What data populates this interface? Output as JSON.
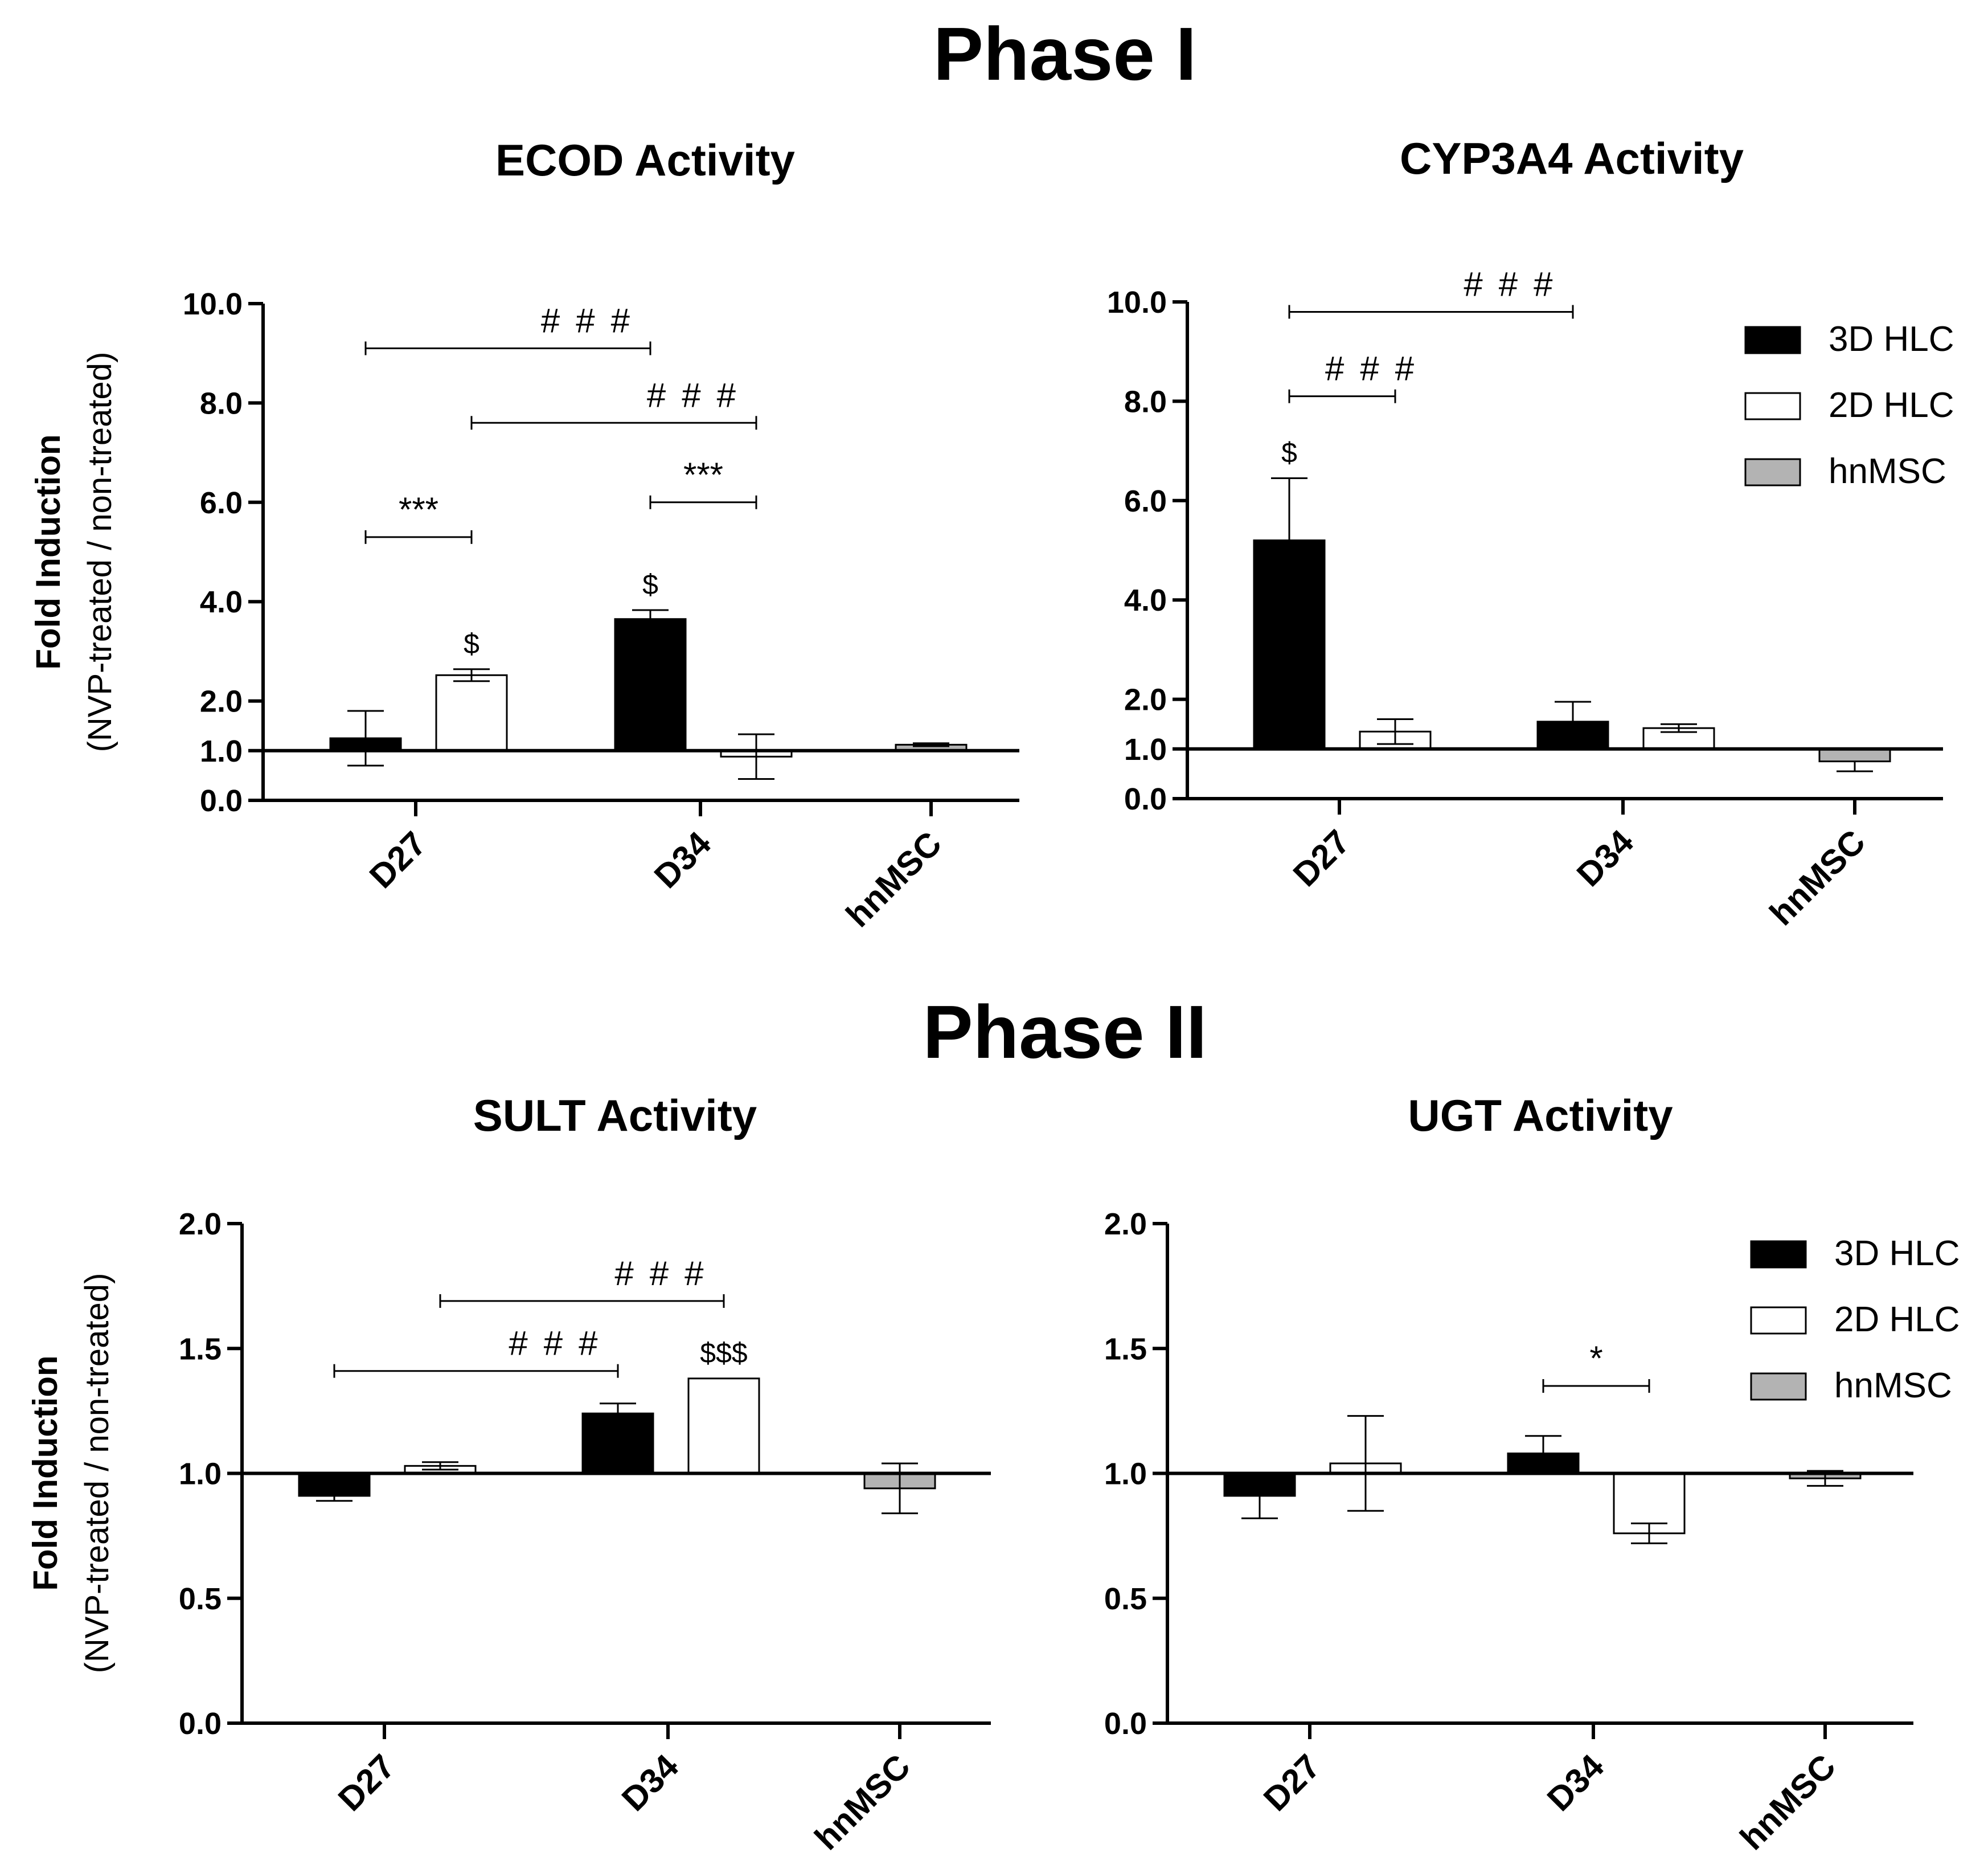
{
  "figure": {
    "phase1_title": "Phase I",
    "phase2_title": "Phase II"
  },
  "legend": [
    {
      "name": "3D HLC",
      "fill": "#000000",
      "stroke": "#000000"
    },
    {
      "name": "2D HLC",
      "fill": "#ffffff",
      "stroke": "#000000"
    },
    {
      "name": "hnMSC",
      "fill": "#b3b3b3",
      "stroke": "#000000"
    }
  ],
  "chart_data": [
    {
      "id": "ecod",
      "type": "bar",
      "title": "ECOD Activity",
      "ylabel": "Fold Induction",
      "ylabel_sub": "(NVP-treated / non-treated)",
      "ylim": [
        0,
        10
      ],
      "baseline": 1.0,
      "yticks": [
        {
          "v": 0,
          "label": "0.0"
        },
        {
          "v": 1,
          "label": "1.0"
        },
        {
          "v": 2,
          "label": "2.0"
        },
        {
          "v": 4,
          "label": "4.0"
        },
        {
          "v": 6,
          "label": "6.0"
        },
        {
          "v": 8,
          "label": "8.0"
        },
        {
          "v": 10,
          "label": "10.0"
        }
      ],
      "categories": [
        "D27",
        "D34",
        "hnMSC"
      ],
      "bars": [
        {
          "cat": 0,
          "series": "3D HLC",
          "value": 1.25,
          "err": 0.55,
          "err_dir": "both"
        },
        {
          "cat": 0,
          "series": "2D HLC",
          "value": 2.52,
          "err": 0.12,
          "err_dir": "both"
        },
        {
          "cat": 1,
          "series": "3D HLC",
          "value": 3.65,
          "err": 0.18,
          "err_dir": "both"
        },
        {
          "cat": 1,
          "series": "2D HLC",
          "value": 0.88,
          "err": 0.45,
          "err_dir": "both"
        },
        {
          "cat": 2,
          "series": "hnMSC",
          "value": 1.12,
          "err": 0.03,
          "err_dir": "both"
        }
      ],
      "bar_annotations": [
        {
          "bar": 1,
          "text": "$"
        },
        {
          "bar": 2,
          "text": "$"
        }
      ],
      "brackets": [
        {
          "from": 0,
          "to": 2,
          "level": 9.1,
          "text": "###"
        },
        {
          "from": 1,
          "to": 3,
          "level": 7.6,
          "text": "###"
        },
        {
          "from": 0,
          "to": 1,
          "level": 5.3,
          "text": "***"
        },
        {
          "from": 2,
          "to": 3,
          "level": 6.0,
          "text": "***"
        }
      ]
    },
    {
      "id": "cyp3a4",
      "type": "bar",
      "title": "CYP3A4 Activity",
      "ylim": [
        0,
        10
      ],
      "baseline": 1.0,
      "yticks": [
        {
          "v": 0,
          "label": "0.0"
        },
        {
          "v": 1,
          "label": "1.0"
        },
        {
          "v": 2,
          "label": "2.0"
        },
        {
          "v": 4,
          "label": "4.0"
        },
        {
          "v": 6,
          "label": "6.0"
        },
        {
          "v": 8,
          "label": "8.0"
        },
        {
          "v": 10,
          "label": "10.0"
        }
      ],
      "categories": [
        "D27",
        "D34",
        "hnMSC"
      ],
      "bars": [
        {
          "cat": 0,
          "series": "3D HLC",
          "value": 5.2,
          "err": 1.25,
          "err_dir": "up"
        },
        {
          "cat": 0,
          "series": "2D HLC",
          "value": 1.35,
          "err": 0.25,
          "err_dir": "both"
        },
        {
          "cat": 1,
          "series": "3D HLC",
          "value": 1.55,
          "err": 0.4,
          "err_dir": "up"
        },
        {
          "cat": 1,
          "series": "2D HLC",
          "value": 1.42,
          "err": 0.08,
          "err_dir": "both"
        },
        {
          "cat": 2,
          "series": "hnMSC",
          "value": 0.75,
          "err": 0.2,
          "err_dir": "down"
        }
      ],
      "bar_annotations": [
        {
          "bar": 0,
          "text": "$"
        }
      ],
      "brackets": [
        {
          "from": 0,
          "to": 2,
          "level": 9.8,
          "text": "###"
        },
        {
          "from": 0,
          "to": 1,
          "level": 8.1,
          "text": "###"
        }
      ]
    },
    {
      "id": "sult",
      "type": "bar",
      "title": "SULT Activity",
      "ylabel": "Fold Induction",
      "ylabel_sub": "(NVP-treated / non-treated)",
      "ylim": [
        0,
        2
      ],
      "baseline": 1.0,
      "yticks": [
        {
          "v": 0,
          "label": "0.0"
        },
        {
          "v": 0.5,
          "label": "0.5"
        },
        {
          "v": 1,
          "label": "1.0"
        },
        {
          "v": 1.5,
          "label": "1.5"
        },
        {
          "v": 2,
          "label": "2.0"
        }
      ],
      "categories": [
        "D27",
        "D34",
        "hnMSC"
      ],
      "bars": [
        {
          "cat": 0,
          "series": "3D HLC",
          "value": 0.91,
          "err": 0.02,
          "err_dir": "both"
        },
        {
          "cat": 0,
          "series": "2D HLC",
          "value": 1.03,
          "err": 0.015,
          "err_dir": "both"
        },
        {
          "cat": 1,
          "series": "3D HLC",
          "value": 1.24,
          "err": 0.04,
          "err_dir": "both"
        },
        {
          "cat": 1,
          "series": "2D HLC",
          "value": 1.38,
          "err": 0.0,
          "err_dir": "both"
        },
        {
          "cat": 2,
          "series": "hnMSC",
          "value": 0.94,
          "err": 0.1,
          "err_dir": "both"
        }
      ],
      "bar_annotations": [
        {
          "bar": 3,
          "text": "$$$"
        }
      ],
      "brackets": [
        {
          "from": 1,
          "to": 3,
          "level": 1.69,
          "text": "###"
        },
        {
          "from": 0,
          "to": 2,
          "level": 1.41,
          "text": "###"
        }
      ]
    },
    {
      "id": "ugt",
      "type": "bar",
      "title": "UGT Activity",
      "ylim": [
        0,
        2
      ],
      "baseline": 1.0,
      "yticks": [
        {
          "v": 0,
          "label": "0.0"
        },
        {
          "v": 0.5,
          "label": "0.5"
        },
        {
          "v": 1,
          "label": "1.0"
        },
        {
          "v": 1.5,
          "label": "1.5"
        },
        {
          "v": 2,
          "label": "2.0"
        }
      ],
      "categories": [
        "D27",
        "D34",
        "hnMSC"
      ],
      "bars": [
        {
          "cat": 0,
          "series": "3D HLC",
          "value": 0.91,
          "err": 0.09,
          "err_dir": "down"
        },
        {
          "cat": 0,
          "series": "2D HLC",
          "value": 1.04,
          "err": 0.19,
          "err_dir": "both"
        },
        {
          "cat": 1,
          "series": "3D HLC",
          "value": 1.08,
          "err": 0.07,
          "err_dir": "up"
        },
        {
          "cat": 1,
          "series": "2D HLC",
          "value": 0.76,
          "err": 0.04,
          "err_dir": "both"
        },
        {
          "cat": 2,
          "series": "hnMSC",
          "value": 0.98,
          "err": 0.03,
          "err_dir": "both"
        }
      ],
      "bar_annotations": [],
      "brackets": [
        {
          "from": 2,
          "to": 3,
          "level": 1.35,
          "text": "*"
        }
      ]
    }
  ]
}
